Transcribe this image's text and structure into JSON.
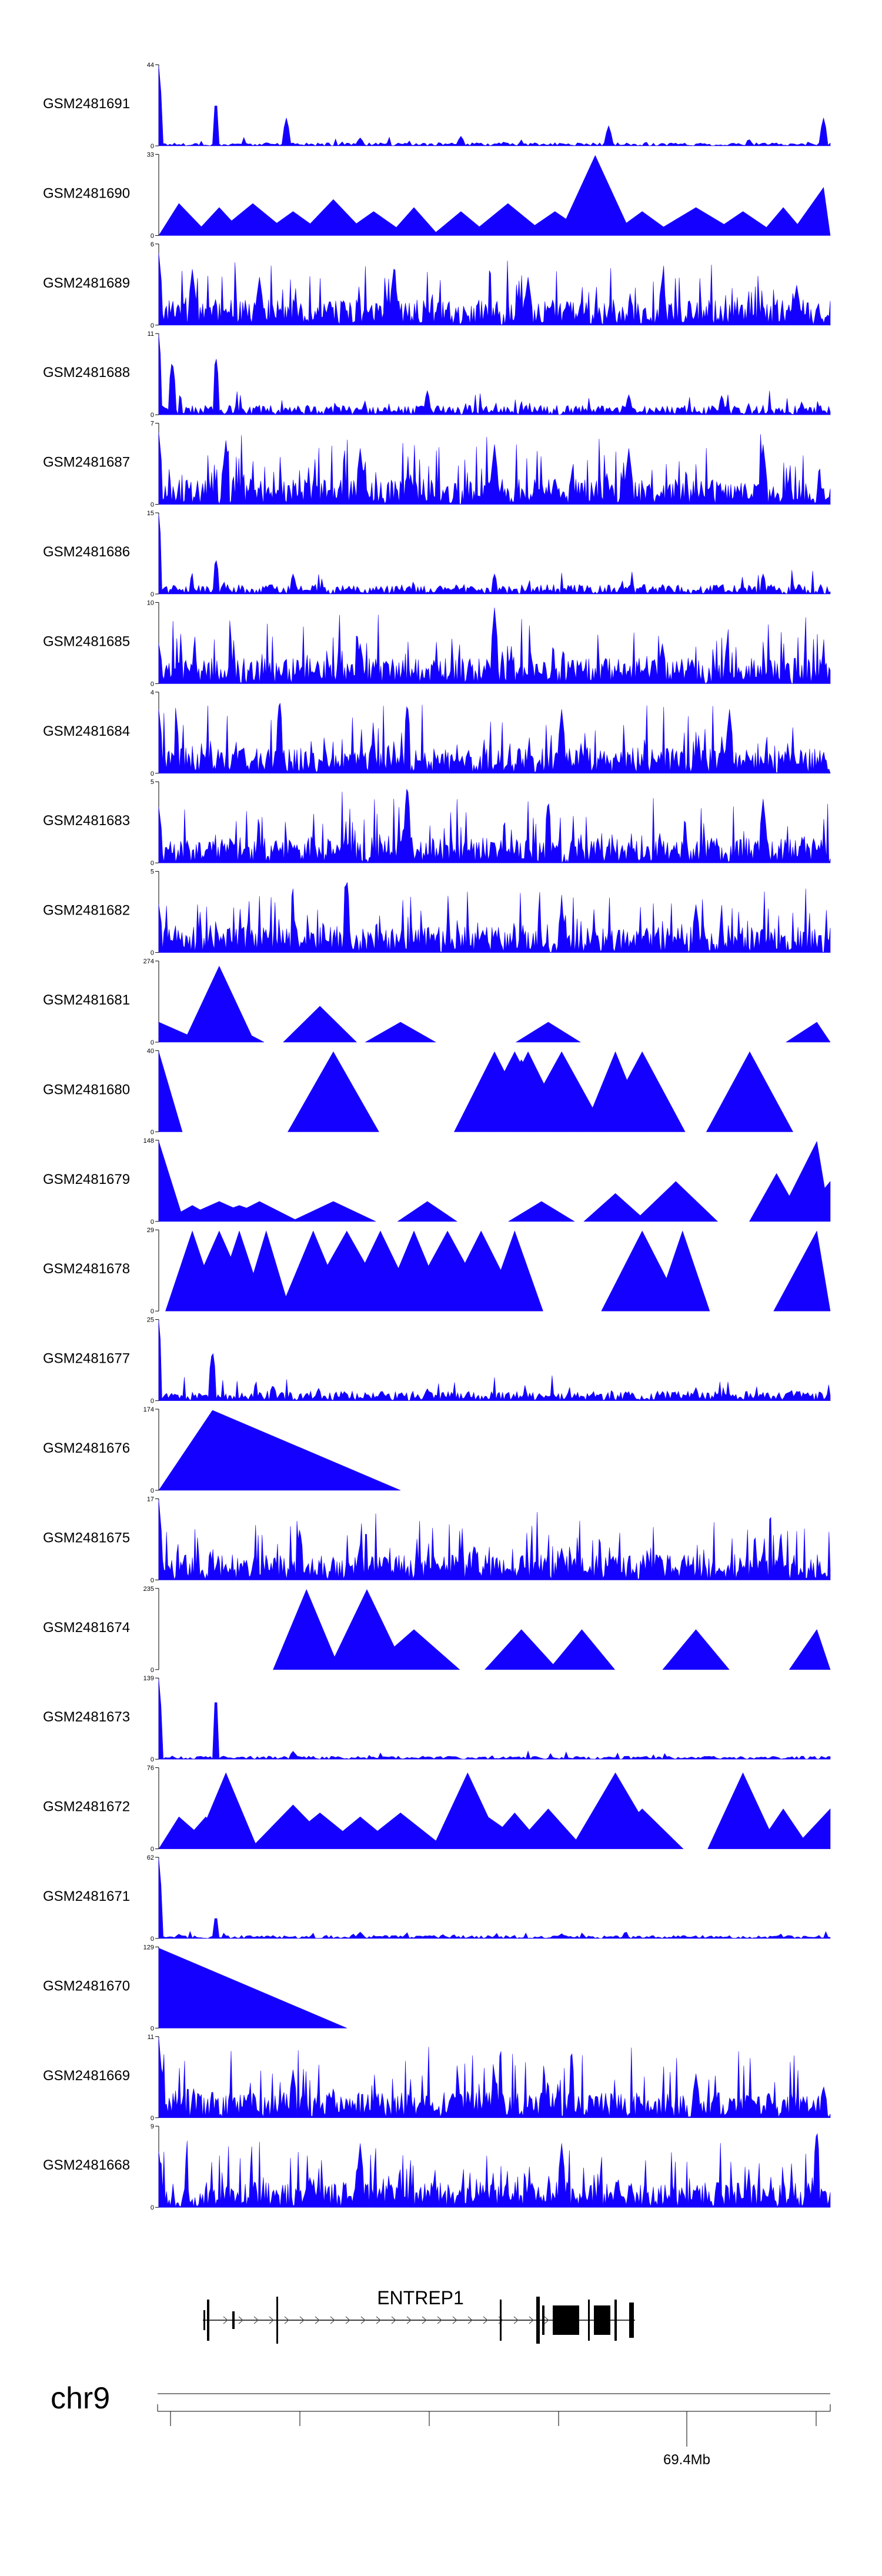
{
  "chart_data": {
    "type": "area",
    "title": "",
    "xlabel": "chr9",
    "ylabel": "",
    "chromosome": "chr9",
    "coordinate_label": "69.4Mb",
    "gene": "ENTREP1",
    "colors": {
      "signal": "#1400ff",
      "axis": "#000000",
      "text": "#000000"
    },
    "tracks": [
      {
        "name": "GSM2481691",
        "ymax": 44,
        "pattern": "sparse",
        "peaks": [
          [
            0.0,
            1.0
          ],
          [
            0.085,
            0.6
          ],
          [
            0.19,
            0.35
          ],
          [
            0.67,
            0.25
          ],
          [
            0.99,
            0.35
          ],
          [
            0.45,
            0.12
          ],
          [
            0.3,
            0.1
          ]
        ]
      },
      {
        "name": "GSM2481690",
        "ymax": 33,
        "pattern": "triangles",
        "peaks": [
          [
            0.03,
            0.4
          ],
          [
            0.09,
            0.35
          ],
          [
            0.14,
            0.4
          ],
          [
            0.2,
            0.3
          ],
          [
            0.26,
            0.45
          ],
          [
            0.32,
            0.3
          ],
          [
            0.38,
            0.35
          ],
          [
            0.45,
            0.3
          ],
          [
            0.52,
            0.4
          ],
          [
            0.59,
            0.3
          ],
          [
            0.65,
            1.0
          ],
          [
            0.72,
            0.3
          ],
          [
            0.8,
            0.35
          ],
          [
            0.87,
            0.3
          ],
          [
            0.93,
            0.35
          ],
          [
            0.99,
            0.6
          ]
        ]
      },
      {
        "name": "GSM2481689",
        "ymax": 6,
        "pattern": "dense",
        "peaks": [
          [
            0.0,
            0.9
          ],
          [
            0.05,
            0.7
          ],
          [
            0.15,
            0.6
          ],
          [
            0.35,
            0.7
          ],
          [
            0.55,
            0.6
          ],
          [
            0.75,
            0.6
          ],
          [
            0.95,
            0.5
          ]
        ]
      },
      {
        "name": "GSM2481688",
        "ymax": 11,
        "pattern": "medium",
        "peaks": [
          [
            0.0,
            1.0
          ],
          [
            0.02,
            0.7
          ],
          [
            0.085,
            0.75
          ],
          [
            0.4,
            0.3
          ],
          [
            0.7,
            0.25
          ]
        ]
      },
      {
        "name": "GSM2481687",
        "ymax": 7,
        "pattern": "dense",
        "peaks": [
          [
            0.0,
            0.9
          ],
          [
            0.1,
            0.8
          ],
          [
            0.3,
            0.7
          ],
          [
            0.5,
            0.75
          ],
          [
            0.7,
            0.7
          ],
          [
            0.9,
            0.75
          ]
        ]
      },
      {
        "name": "GSM2481686",
        "ymax": 15,
        "pattern": "medium",
        "peaks": [
          [
            0.0,
            1.0
          ],
          [
            0.085,
            0.45
          ],
          [
            0.2,
            0.25
          ],
          [
            0.5,
            0.25
          ],
          [
            0.9,
            0.25
          ]
        ]
      },
      {
        "name": "GSM2481685",
        "ymax": 10,
        "pattern": "dense",
        "peaks": [
          [
            0.0,
            0.5
          ],
          [
            0.5,
            0.95
          ],
          [
            0.3,
            0.5
          ],
          [
            0.75,
            0.5
          ]
        ]
      },
      {
        "name": "GSM2481684",
        "ymax": 4,
        "pattern": "dense",
        "peaks": [
          [
            0.0,
            0.8
          ],
          [
            0.18,
            0.95
          ],
          [
            0.37,
            0.9
          ],
          [
            0.6,
            0.8
          ],
          [
            0.85,
            0.8
          ]
        ]
      },
      {
        "name": "GSM2481683",
        "ymax": 5,
        "pattern": "dense",
        "peaks": [
          [
            0.0,
            0.7
          ],
          [
            0.37,
            1.0
          ],
          [
            0.58,
            0.8
          ],
          [
            0.9,
            0.8
          ]
        ]
      },
      {
        "name": "GSM2481682",
        "ymax": 5,
        "pattern": "dense",
        "peaks": [
          [
            0.0,
            0.6
          ],
          [
            0.28,
            0.95
          ],
          [
            0.6,
            0.6
          ],
          [
            0.8,
            0.6
          ]
        ]
      },
      {
        "name": "GSM2481681",
        "ymax": 274,
        "pattern": "triangles",
        "peaks": [
          [
            0.0,
            0.25
          ],
          [
            0.05,
            0.05
          ],
          [
            0.09,
            0.95
          ],
          [
            0.1,
            0.25
          ],
          [
            0.23,
            0.25
          ],
          [
            0.24,
            0.45
          ],
          [
            0.36,
            0.25
          ],
          [
            0.58,
            0.25
          ],
          [
            0.98,
            0.25
          ]
        ]
      },
      {
        "name": "GSM2481680",
        "ymax": 40,
        "pattern": "triangles",
        "peaks": [
          [
            0.0,
            1.0
          ],
          [
            0.26,
            1.0
          ],
          [
            0.5,
            1.0
          ],
          [
            0.53,
            1.0
          ],
          [
            0.54,
            0.9
          ],
          [
            0.55,
            1.0
          ],
          [
            0.6,
            1.0
          ],
          [
            0.68,
            1.0
          ],
          [
            0.72,
            1.0
          ],
          [
            0.88,
            1.0
          ]
        ]
      },
      {
        "name": "GSM2481679",
        "ymax": 148,
        "pattern": "triangles",
        "peaks": [
          [
            0.0,
            1.0
          ],
          [
            0.05,
            0.2
          ],
          [
            0.09,
            0.25
          ],
          [
            0.12,
            0.2
          ],
          [
            0.15,
            0.25
          ],
          [
            0.26,
            0.25
          ],
          [
            0.4,
            0.25
          ],
          [
            0.57,
            0.25
          ],
          [
            0.68,
            0.35
          ],
          [
            0.77,
            0.5
          ],
          [
            0.92,
            0.6
          ],
          [
            0.98,
            1.0
          ],
          [
            1.0,
            0.5
          ]
        ]
      },
      {
        "name": "GSM2481678",
        "ymax": 29,
        "pattern": "triangles",
        "peaks": [
          [
            0.05,
            1.0
          ],
          [
            0.09,
            1.0
          ],
          [
            0.12,
            1.0
          ],
          [
            0.16,
            1.0
          ],
          [
            0.23,
            1.0
          ],
          [
            0.28,
            1.0
          ],
          [
            0.33,
            1.0
          ],
          [
            0.38,
            1.0
          ],
          [
            0.43,
            1.0
          ],
          [
            0.48,
            1.0
          ],
          [
            0.53,
            1.0
          ],
          [
            0.72,
            1.0
          ],
          [
            0.78,
            1.0
          ],
          [
            0.98,
            1.0
          ]
        ]
      },
      {
        "name": "GSM2481677",
        "ymax": 25,
        "pattern": "medium",
        "peaks": [
          [
            0.0,
            1.0
          ],
          [
            0.08,
            0.65
          ],
          [
            0.17,
            0.2
          ],
          [
            0.4,
            0.15
          ],
          [
            0.8,
            0.15
          ]
        ]
      },
      {
        "name": "GSM2481676",
        "ymax": 174,
        "pattern": "triangles",
        "peaks": [
          [
            0.08,
            1.0
          ]
        ]
      },
      {
        "name": "GSM2481675",
        "ymax": 17,
        "pattern": "dense",
        "peaks": [
          [
            0.0,
            1.0
          ],
          [
            0.21,
            0.65
          ],
          [
            0.3,
            0.45
          ],
          [
            0.47,
            0.45
          ],
          [
            0.6,
            0.4
          ],
          [
            0.9,
            0.35
          ]
        ]
      },
      {
        "name": "GSM2481674",
        "ymax": 235,
        "pattern": "triangles",
        "peaks": [
          [
            0.22,
            1.0
          ],
          [
            0.31,
            1.0
          ],
          [
            0.38,
            0.5
          ],
          [
            0.54,
            0.5
          ],
          [
            0.63,
            0.5
          ],
          [
            0.8,
            0.5
          ],
          [
            0.98,
            0.5
          ]
        ]
      },
      {
        "name": "GSM2481673",
        "ymax": 139,
        "pattern": "sparse",
        "peaks": [
          [
            0.0,
            1.0
          ],
          [
            0.085,
            0.85
          ],
          [
            0.2,
            0.1
          ]
        ]
      },
      {
        "name": "GSM2481672",
        "ymax": 76,
        "pattern": "triangles",
        "peaks": [
          [
            0.03,
            0.4
          ],
          [
            0.07,
            0.4
          ],
          [
            0.1,
            0.95
          ],
          [
            0.2,
            0.55
          ],
          [
            0.24,
            0.45
          ],
          [
            0.3,
            0.4
          ],
          [
            0.36,
            0.45
          ],
          [
            0.46,
            0.95
          ],
          [
            0.49,
            0.4
          ],
          [
            0.53,
            0.45
          ],
          [
            0.58,
            0.5
          ],
          [
            0.68,
            0.95
          ],
          [
            0.72,
            0.5
          ],
          [
            0.87,
            0.95
          ],
          [
            0.93,
            0.5
          ],
          [
            1.0,
            0.5
          ]
        ]
      },
      {
        "name": "GSM2481671",
        "ymax": 62,
        "pattern": "sparse",
        "peaks": [
          [
            0.0,
            1.0
          ],
          [
            0.085,
            0.3
          ],
          [
            0.3,
            0.08
          ],
          [
            0.6,
            0.06
          ]
        ]
      },
      {
        "name": "GSM2481670",
        "ymax": 129,
        "pattern": "triangles",
        "peaks": [
          [
            0.0,
            1.0
          ]
        ]
      },
      {
        "name": "GSM2481669",
        "ymax": 11,
        "pattern": "dense",
        "peaks": [
          [
            0.0,
            1.0
          ],
          [
            0.2,
            0.6
          ],
          [
            0.5,
            0.55
          ],
          [
            0.8,
            0.55
          ],
          [
            0.99,
            0.4
          ]
        ]
      },
      {
        "name": "GSM2481668",
        "ymax": 9,
        "pattern": "dense",
        "peaks": [
          [
            0.0,
            0.7
          ],
          [
            0.3,
            0.8
          ],
          [
            0.6,
            0.8
          ],
          [
            0.98,
            1.0
          ]
        ]
      }
    ]
  }
}
